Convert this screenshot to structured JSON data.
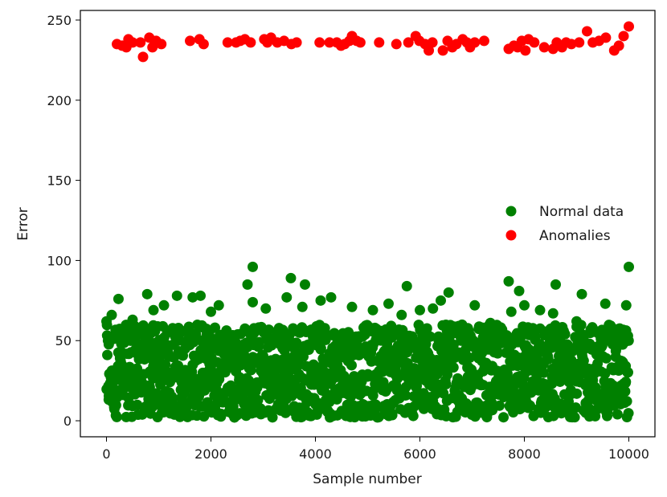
{
  "chart_data": {
    "type": "scatter",
    "title": "",
    "xlabel": "Sample number",
    "ylabel": "Error",
    "xlim": [
      -500,
      10500
    ],
    "ylim": [
      -10,
      256
    ],
    "x_ticks": [
      "0",
      "2000",
      "4000",
      "6000",
      "8000",
      "10000"
    ],
    "x_tick_values": [
      0,
      2000,
      4000,
      6000,
      8000,
      10000
    ],
    "y_ticks": [
      "0",
      "50",
      "100",
      "150",
      "200",
      "250"
    ],
    "y_tick_values": [
      0,
      50,
      100,
      150,
      200,
      250
    ],
    "grid": false,
    "legend_position": "center-right",
    "series": [
      {
        "name": "Normal data",
        "color": "#008000",
        "distribution": {
          "x_range": [
            0,
            10000
          ],
          "y_range": [
            2,
            60
          ],
          "count": 10000
        },
        "visible_outliers": [
          [
            0,
            62
          ],
          [
            100,
            66
          ],
          [
            230,
            76
          ],
          [
            500,
            63
          ],
          [
            780,
            79
          ],
          [
            900,
            69
          ],
          [
            1100,
            72
          ],
          [
            1350,
            78
          ],
          [
            1650,
            77
          ],
          [
            1800,
            78
          ],
          [
            2000,
            68
          ],
          [
            2150,
            72
          ],
          [
            2700,
            85
          ],
          [
            2800,
            96
          ],
          [
            2800,
            74
          ],
          [
            3050,
            70
          ],
          [
            3450,
            77
          ],
          [
            3530,
            89
          ],
          [
            3750,
            71
          ],
          [
            3800,
            85
          ],
          [
            4100,
            75
          ],
          [
            4300,
            77
          ],
          [
            4700,
            71
          ],
          [
            5100,
            69
          ],
          [
            5400,
            73
          ],
          [
            5650,
            66
          ],
          [
            5750,
            84
          ],
          [
            6000,
            69
          ],
          [
            6250,
            70
          ],
          [
            6400,
            75
          ],
          [
            6550,
            80
          ],
          [
            7050,
            72
          ],
          [
            7350,
            61
          ],
          [
            7700,
            87
          ],
          [
            7900,
            81
          ],
          [
            7750,
            68
          ],
          [
            8000,
            72
          ],
          [
            8300,
            69
          ],
          [
            8550,
            67
          ],
          [
            8600,
            85
          ],
          [
            9000,
            62
          ],
          [
            9100,
            79
          ],
          [
            9550,
            73
          ],
          [
            9950,
            72
          ],
          [
            10000,
            96
          ]
        ]
      },
      {
        "name": "Anomalies",
        "color": "#ff0000",
        "points": [
          [
            200,
            235
          ],
          [
            300,
            234
          ],
          [
            380,
            233
          ],
          [
            420,
            238
          ],
          [
            500,
            236
          ],
          [
            650,
            236
          ],
          [
            700,
            227
          ],
          [
            820,
            239
          ],
          [
            880,
            233
          ],
          [
            950,
            237
          ],
          [
            1050,
            235
          ],
          [
            1600,
            237
          ],
          [
            1780,
            238
          ],
          [
            1860,
            235
          ],
          [
            2320,
            236
          ],
          [
            2480,
            236
          ],
          [
            2560,
            237
          ],
          [
            2650,
            238
          ],
          [
            2760,
            236
          ],
          [
            3020,
            238
          ],
          [
            3080,
            236
          ],
          [
            3150,
            239
          ],
          [
            3270,
            236
          ],
          [
            3400,
            237
          ],
          [
            3540,
            235
          ],
          [
            3640,
            236
          ],
          [
            4080,
            236
          ],
          [
            4270,
            236
          ],
          [
            4410,
            236
          ],
          [
            4490,
            234
          ],
          [
            4560,
            235
          ],
          [
            4650,
            237
          ],
          [
            4700,
            240
          ],
          [
            4790,
            237
          ],
          [
            4860,
            236
          ],
          [
            5220,
            236
          ],
          [
            5550,
            235
          ],
          [
            5780,
            236
          ],
          [
            5920,
            240
          ],
          [
            5990,
            237
          ],
          [
            6100,
            235
          ],
          [
            6170,
            231
          ],
          [
            6240,
            236
          ],
          [
            6440,
            231
          ],
          [
            6530,
            237
          ],
          [
            6620,
            233
          ],
          [
            6700,
            235
          ],
          [
            6820,
            238
          ],
          [
            6900,
            236
          ],
          [
            6960,
            233
          ],
          [
            7050,
            236
          ],
          [
            7230,
            237
          ],
          [
            7700,
            232
          ],
          [
            7800,
            234
          ],
          [
            7870,
            233
          ],
          [
            7950,
            237
          ],
          [
            8020,
            231
          ],
          [
            8080,
            238
          ],
          [
            8190,
            236
          ],
          [
            8380,
            233
          ],
          [
            8550,
            232
          ],
          [
            8620,
            236
          ],
          [
            8720,
            233
          ],
          [
            8800,
            236
          ],
          [
            8900,
            235
          ],
          [
            9050,
            236
          ],
          [
            9200,
            243
          ],
          [
            9310,
            236
          ],
          [
            9430,
            237
          ],
          [
            9560,
            239
          ],
          [
            9720,
            231
          ],
          [
            9810,
            234
          ],
          [
            9900,
            240
          ],
          [
            10000,
            246
          ]
        ]
      }
    ]
  }
}
